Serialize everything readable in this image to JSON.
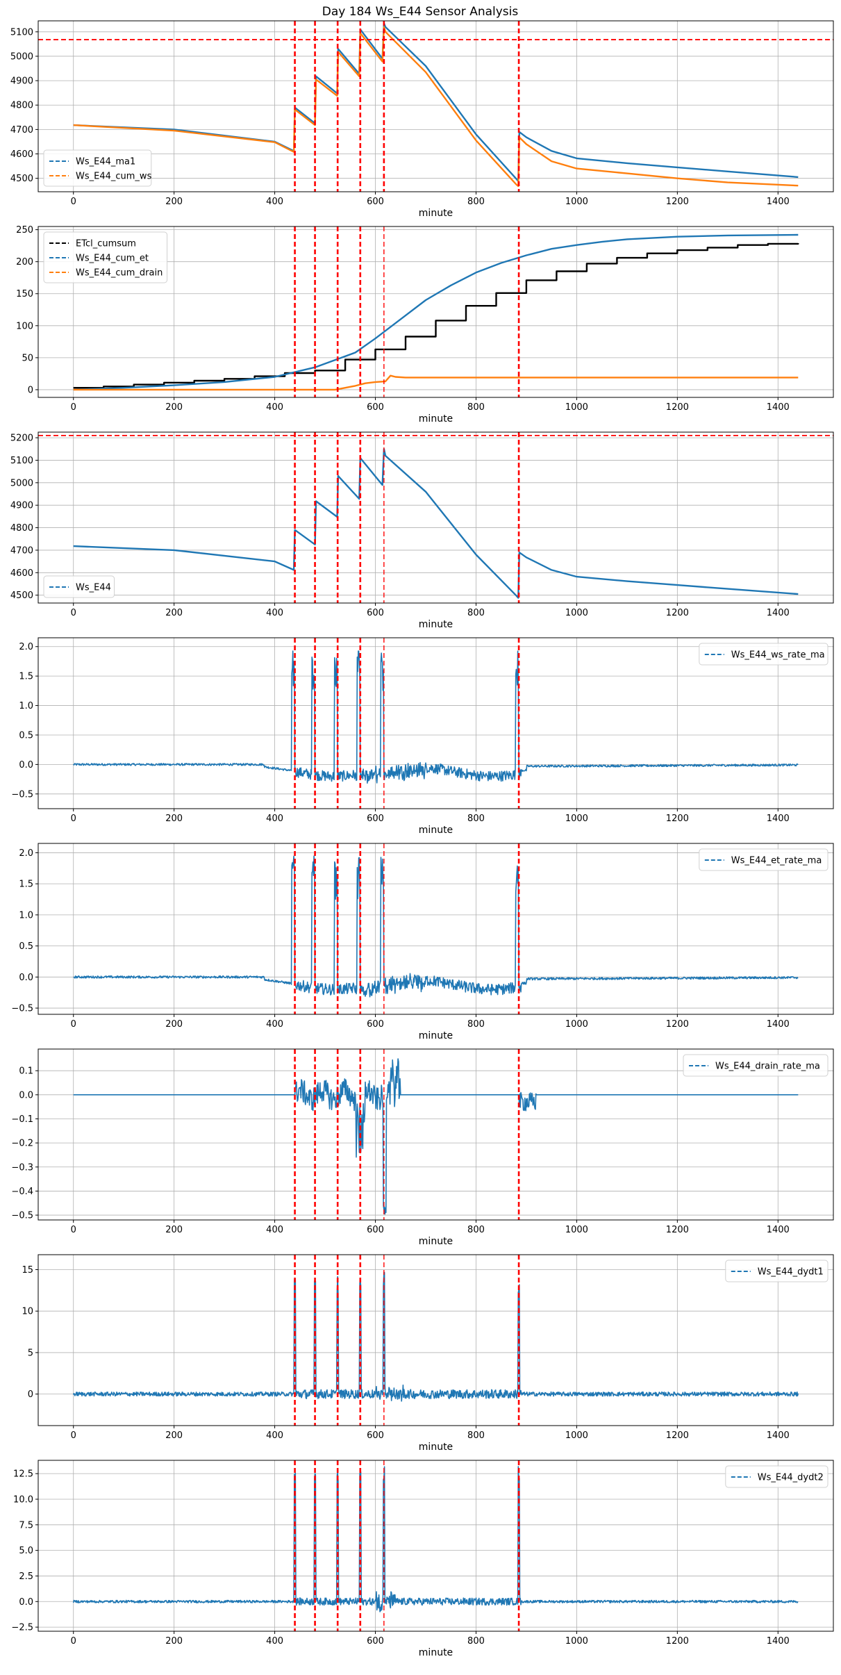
{
  "figure_title": "Day 184 Ws_E44 Sensor Analysis",
  "colors": {
    "blue": "#1f77b4",
    "orange": "#ff7f0e",
    "black": "#000000",
    "red": "#ff0000",
    "grid": "#b0b0b0"
  },
  "event_lines": [
    440,
    480,
    525,
    570,
    617,
    885
  ],
  "thin_event_line": 617,
  "chart_data": [
    {
      "type": "line",
      "xlabel": "minute",
      "xlim": [
        -70,
        1510
      ],
      "ylim": [
        4445,
        5145
      ],
      "xticks": [
        0,
        200,
        400,
        600,
        800,
        1000,
        1200,
        1400
      ],
      "yticks": [
        4500,
        4600,
        4700,
        4800,
        4900,
        5000,
        5100
      ],
      "hline": 5068,
      "legend_loc": "lower-left",
      "series": [
        {
          "name": "Ws_E44_ma1",
          "color": "blue",
          "dash": true,
          "x": [
            0,
            200,
            400,
            438,
            440,
            480,
            482,
            524,
            526,
            568,
            570,
            614,
            617,
            620,
            700,
            800,
            880,
            884,
            886,
            900,
            950,
            1000,
            1100,
            1200,
            1300,
            1440
          ],
          "y": [
            4718,
            4700,
            4650,
            4612,
            4790,
            4725,
            4918,
            4848,
            5030,
            4928,
            5110,
            4990,
            5135,
            5120,
            4960,
            4680,
            4498,
            4488,
            4690,
            4668,
            4612,
            4582,
            4562,
            4545,
            4528,
            4505
          ]
        },
        {
          "name": "Ws_E44_cum_ws",
          "color": "orange",
          "dash": true,
          "x": [
            0,
            200,
            400,
            438,
            440,
            480,
            482,
            524,
            526,
            568,
            570,
            614,
            617,
            620,
            700,
            800,
            880,
            884,
            886,
            900,
            950,
            1000,
            1100,
            1200,
            1300,
            1440
          ],
          "y": [
            4718,
            4695,
            4648,
            4608,
            4782,
            4718,
            4905,
            4838,
            5018,
            4918,
            5095,
            4978,
            5120,
            5100,
            4935,
            4655,
            4475,
            4468,
            4668,
            4640,
            4570,
            4540,
            4520,
            4500,
            4483,
            4470
          ]
        }
      ]
    },
    {
      "type": "line",
      "xlabel": "minute",
      "xlim": [
        -70,
        1510
      ],
      "ylim": [
        -12,
        255
      ],
      "xticks": [
        0,
        200,
        400,
        600,
        800,
        1000,
        1200,
        1400
      ],
      "yticks": [
        0,
        50,
        100,
        150,
        200,
        250
      ],
      "legend_loc": "upper-left",
      "series": [
        {
          "name": "ETcl_cumsum",
          "color": "black",
          "dash": true,
          "step": true,
          "x": [
            0,
            60,
            120,
            180,
            240,
            300,
            360,
            420,
            480,
            540,
            600,
            660,
            720,
            780,
            840,
            900,
            960,
            1020,
            1080,
            1140,
            1200,
            1260,
            1320,
            1380,
            1440
          ],
          "y": [
            3,
            5,
            8,
            11,
            14,
            17,
            21,
            26,
            30,
            47,
            63,
            83,
            108,
            131,
            151,
            171,
            185,
            197,
            206,
            213,
            218,
            222,
            226,
            228,
            229
          ]
        },
        {
          "name": "Ws_E44_cum_et",
          "color": "blue",
          "dash": true,
          "x": [
            0,
            100,
            200,
            300,
            400,
            480,
            560,
            600,
            650,
            700,
            750,
            800,
            850,
            900,
            950,
            1000,
            1050,
            1100,
            1200,
            1300,
            1440
          ],
          "y": [
            0,
            3,
            7,
            12,
            20,
            35,
            58,
            80,
            110,
            140,
            163,
            183,
            198,
            210,
            220,
            226,
            231,
            235,
            239,
            241,
            242
          ]
        },
        {
          "name": "Ws_E44_cum_drain",
          "color": "orange",
          "dash": true,
          "x": [
            0,
            400,
            480,
            520,
            540,
            560,
            580,
            600,
            620,
            630,
            640,
            660,
            700,
            800,
            1000,
            1440
          ],
          "y": [
            0,
            0,
            0,
            0,
            3,
            6,
            10,
            12,
            13,
            22,
            20,
            19,
            19,
            19,
            19,
            19
          ]
        }
      ]
    },
    {
      "type": "line",
      "xlabel": "minute",
      "xlim": [
        -70,
        1510
      ],
      "ylim": [
        4465,
        5225
      ],
      "xticks": [
        0,
        200,
        400,
        600,
        800,
        1000,
        1200,
        1400
      ],
      "yticks": [
        4500,
        4600,
        4700,
        4800,
        4900,
        5000,
        5100,
        5200
      ],
      "hline": 5210,
      "legend_loc": "lower-left",
      "series": [
        {
          "name": "Ws_E44",
          "color": "blue",
          "dash": false,
          "x": [
            0,
            200,
            400,
            438,
            440,
            480,
            482,
            524,
            526,
            568,
            570,
            614,
            617,
            620,
            700,
            800,
            880,
            884,
            886,
            900,
            950,
            1000,
            1100,
            1200,
            1300,
            1440
          ],
          "y": [
            4718,
            4700,
            4650,
            4612,
            4790,
            4725,
            4918,
            4848,
            5030,
            4928,
            5110,
            4990,
            5150,
            5120,
            4960,
            4680,
            4498,
            4488,
            4690,
            4668,
            4612,
            4582,
            4562,
            4545,
            4528,
            4505
          ]
        }
      ]
    },
    {
      "type": "line",
      "xlabel": "minute",
      "xlim": [
        -70,
        1510
      ],
      "ylim": [
        -0.75,
        2.15
      ],
      "xticks": [
        0,
        200,
        400,
        600,
        800,
        1000,
        1200,
        1400
      ],
      "yticks": [
        -0.5,
        0.0,
        0.5,
        1.0,
        1.5,
        2.0
      ],
      "legend_loc": "upper-right",
      "series": [
        {
          "name": "Ws_E44_ws_rate_ma",
          "color": "blue",
          "dash": true
        }
      ]
    },
    {
      "type": "line",
      "xlabel": "minute",
      "xlim": [
        -70,
        1510
      ],
      "ylim": [
        -0.6,
        2.15
      ],
      "xticks": [
        0,
        200,
        400,
        600,
        800,
        1000,
        1200,
        1400
      ],
      "yticks": [
        -0.5,
        0.0,
        0.5,
        1.0,
        1.5,
        2.0
      ],
      "legend_loc": "upper-right",
      "series": [
        {
          "name": "Ws_E44_et_rate_ma",
          "color": "blue",
          "dash": true
        }
      ]
    },
    {
      "type": "line",
      "xlabel": "minute",
      "xlim": [
        -70,
        1510
      ],
      "ylim": [
        -0.52,
        0.19
      ],
      "xticks": [
        0,
        200,
        400,
        600,
        800,
        1000,
        1200,
        1400
      ],
      "yticks": [
        -0.5,
        -0.4,
        -0.3,
        -0.2,
        -0.1,
        0.0,
        0.1
      ],
      "legend_loc": "upper-right",
      "series": [
        {
          "name": "Ws_E44_drain_rate_ma",
          "color": "blue",
          "dash": true
        }
      ]
    },
    {
      "type": "line",
      "xlabel": "minute",
      "xlim": [
        -70,
        1510
      ],
      "ylim": [
        -3.8,
        16.8
      ],
      "xticks": [
        0,
        200,
        400,
        600,
        800,
        1000,
        1200,
        1400
      ],
      "yticks": [
        0,
        5,
        10,
        15
      ],
      "legend_loc": "upper-right",
      "series": [
        {
          "name": "Ws_E44_dydt1",
          "color": "blue",
          "dash": true
        }
      ]
    },
    {
      "type": "line",
      "xlabel": "minute",
      "xlim": [
        -70,
        1510
      ],
      "ylim": [
        -2.9,
        13.8
      ],
      "xticks": [
        0,
        200,
        400,
        600,
        800,
        1000,
        1200,
        1400
      ],
      "yticks": [
        -2.5,
        0.0,
        2.5,
        5.0,
        7.5,
        10.0,
        12.5
      ],
      "legend_loc": "upper-right",
      "series": [
        {
          "name": "Ws_E44_dydt2",
          "color": "blue",
          "dash": true
        }
      ]
    }
  ]
}
